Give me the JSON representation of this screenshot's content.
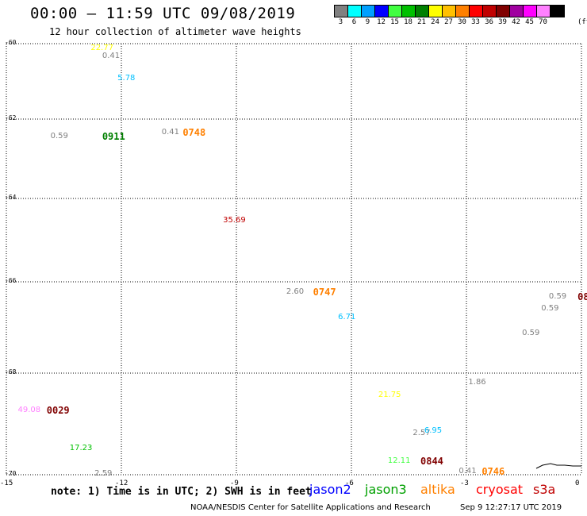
{
  "header": {
    "title": "00:00 – 11:59 UTC 09/08/2019",
    "subtitle": "12 hour collection of altimeter wave heights"
  },
  "legend": {
    "unit": "(ft)",
    "bins": [
      {
        "label": "3",
        "color": "#808080"
      },
      {
        "label": "6",
        "color": "#00ffff"
      },
      {
        "label": "9",
        "color": "#00a0ff"
      },
      {
        "label": "12",
        "color": "#0000ff"
      },
      {
        "label": "15",
        "color": "#40ff40"
      },
      {
        "label": "18",
        "color": "#00c000"
      },
      {
        "label": "21",
        "color": "#008000"
      },
      {
        "label": "24",
        "color": "#ffff00"
      },
      {
        "label": "27",
        "color": "#ffc000"
      },
      {
        "label": "30",
        "color": "#ff8000"
      },
      {
        "label": "33",
        "color": "#ff0000"
      },
      {
        "label": "36",
        "color": "#c00000"
      },
      {
        "label": "39",
        "color": "#800000"
      },
      {
        "label": "42",
        "color": "#a000a0"
      },
      {
        "label": "45",
        "color": "#ff00ff"
      },
      {
        "label": "70",
        "color": "#ff80ff"
      },
      {
        "label": "",
        "color": "#000000"
      }
    ]
  },
  "map": {
    "lat_labels": [
      "-60",
      "-62",
      "-64",
      "-66",
      "-68",
      "-70"
    ],
    "lon_labels": [
      "-15",
      "-12",
      "-9",
      "-6",
      "-3",
      "0"
    ]
  },
  "observations": [
    {
      "value": "22.77",
      "lat": -60.15,
      "lon": -12.8,
      "color": "#ffff00"
    },
    {
      "value": "0.41",
      "lat": -60.35,
      "lon": -12.5,
      "color": "#808080"
    },
    {
      "value": "5.78",
      "lat": -60.95,
      "lon": -12.1,
      "color": "#00c0ff"
    },
    {
      "value": "0.59",
      "lat": -62.45,
      "lon": -13.85,
      "color": "#808080"
    },
    {
      "value": "0.41",
      "lat": -62.35,
      "lon": -10.95,
      "color": "#808080"
    },
    {
      "value": "35.69",
      "lat": -64.55,
      "lon": -9.35,
      "color": "#c00000"
    },
    {
      "value": "2.60",
      "lat": -66.25,
      "lon": -7.7,
      "color": "#808080"
    },
    {
      "value": "6.71",
      "lat": -66.8,
      "lon": -6.35,
      "color": "#00c0ff"
    },
    {
      "value": "0.59",
      "lat": -66.35,
      "lon": -0.85,
      "color": "#808080"
    },
    {
      "value": "0.59",
      "lat": -66.6,
      "lon": -1.05,
      "color": "#808080"
    },
    {
      "value": "0.59",
      "lat": -67.15,
      "lon": -1.55,
      "color": "#808080"
    },
    {
      "value": "1.86",
      "lat": -68.2,
      "lon": -2.95,
      "color": "#808080"
    },
    {
      "value": "21.75",
      "lat": -68.45,
      "lon": -5.3,
      "color": "#ffff00"
    },
    {
      "value": "49.08",
      "lat": -68.75,
      "lon": -14.7,
      "color": "#ff80ff"
    },
    {
      "value": "2.57",
      "lat": -69.2,
      "lon": -4.4,
      "color": "#808080"
    },
    {
      "value": "6.95",
      "lat": -69.15,
      "lon": -4.1,
      "color": "#00c0ff"
    },
    {
      "value": "17.23",
      "lat": -69.5,
      "lon": -13.35,
      "color": "#00c000"
    },
    {
      "value": "12.11",
      "lat": -69.75,
      "lon": -5.05,
      "color": "#40ff40"
    },
    {
      "value": "0.41",
      "lat": -69.95,
      "lon": -3.2,
      "color": "#808080"
    },
    {
      "value": "2.59",
      "lat": -70.0,
      "lon": -12.7,
      "color": "#808080"
    }
  ],
  "pass_times": [
    {
      "time": "0911",
      "lat": -62.45,
      "lon": -12.5,
      "color": "#008000"
    },
    {
      "time": "0748",
      "lat": -62.35,
      "lon": -10.4,
      "color": "#ff8000"
    },
    {
      "time": "0747",
      "lat": -66.25,
      "lon": -7.0,
      "color": "#ff8000"
    },
    {
      "time": "08",
      "lat": -66.35,
      "lon": -0.1,
      "color": "#800000"
    },
    {
      "time": "0029",
      "lat": -68.75,
      "lon": -13.95,
      "color": "#800000"
    },
    {
      "time": "0844",
      "lat": -69.75,
      "lon": -4.2,
      "color": "#800000"
    },
    {
      "time": "0746",
      "lat": -69.95,
      "lon": -2.6,
      "color": "#ff8000"
    }
  ],
  "footer": {
    "note": "note: 1) Time is in UTC; 2) SWH is in feet",
    "satellites": [
      {
        "name": "jason2",
        "color": "#0000ff"
      },
      {
        "name": "jason3",
        "color": "#00a000"
      },
      {
        "name": "altika",
        "color": "#ff8000"
      },
      {
        "name": "cryosat",
        "color": "#ff0000"
      },
      {
        "name": "s3a",
        "color": "#c00000"
      }
    ],
    "credit": "NOAA/NESDIS Center for Satellite Applications and Research",
    "timestamp": "Sep  9 12:27:17 UTC 2019"
  }
}
